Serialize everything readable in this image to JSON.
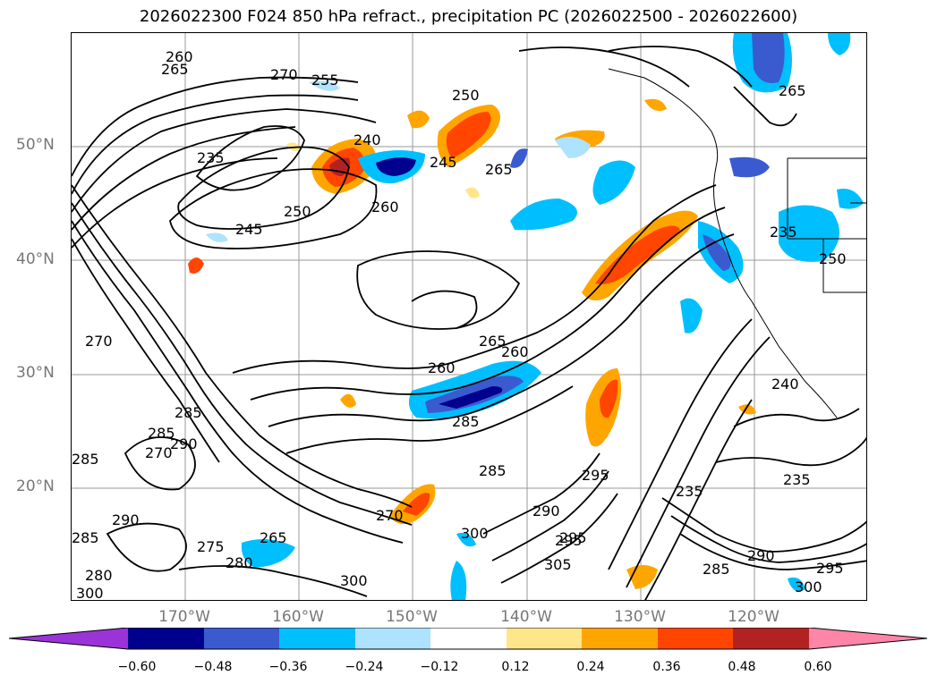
{
  "title": "2026022300 F024 850 hPa refract., precipitation PC (2026022500 - 2026022600)",
  "axes": {
    "lat_labels": [
      "50°N",
      "40°N",
      "30°N",
      "20°N"
    ],
    "lon_labels": [
      "170°W",
      "160°W",
      "150°W",
      "140°W",
      "130°W",
      "120°W"
    ]
  },
  "contour_labels": [
    "260",
    "265",
    "270",
    "255",
    "235",
    "240",
    "245",
    "250",
    "250",
    "245",
    "260",
    "265",
    "265",
    "250",
    "235",
    "270",
    "285",
    "285",
    "290",
    "285",
    "260",
    "265",
    "270",
    "260",
    "285",
    "285",
    "295",
    "295",
    "290",
    "270",
    "285",
    "280",
    "290",
    "300",
    "275",
    "280",
    "265",
    "300",
    "300",
    "305",
    "295",
    "235",
    "235",
    "240",
    "285",
    "290",
    "295",
    "300"
  ],
  "colorbar": {
    "ticks": [
      "−0.60",
      "−0.48",
      "−0.36",
      "−0.24",
      "−0.12",
      "0.12",
      "0.24",
      "0.36",
      "0.48",
      "0.60"
    ],
    "colors": [
      "#9A33D8",
      "#00008F",
      "#3A5BD0",
      "#00BFFF",
      "#ADE3FF",
      "#FFFFFF",
      "#FFE68A",
      "#FFA500",
      "#FF4500",
      "#B22222",
      "#FF85A8"
    ]
  }
}
